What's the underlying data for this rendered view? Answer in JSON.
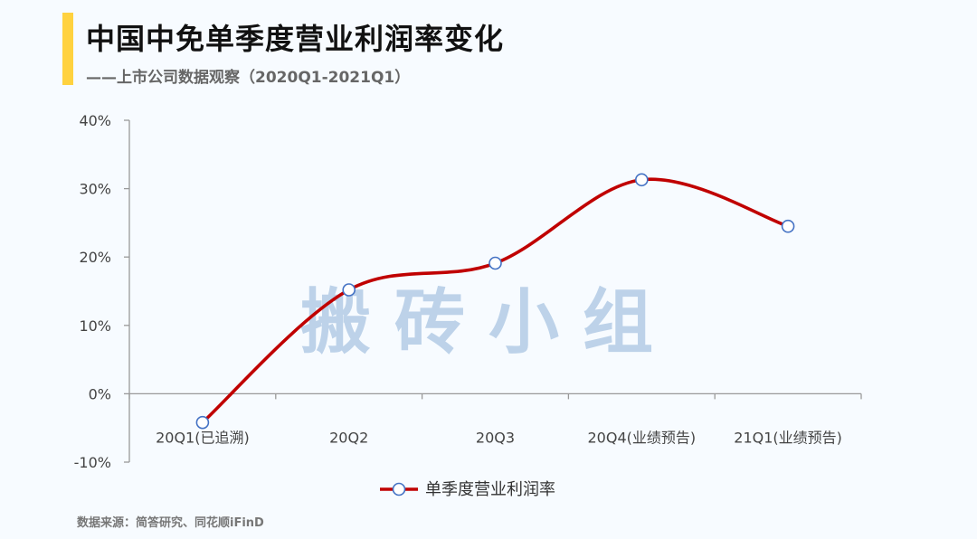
{
  "header": {
    "title": "中国中免单季度营业利润率变化",
    "subtitle": "——上市公司数据观察（2020Q1-2021Q1）"
  },
  "watermark": "搬砖小组",
  "source": "数据来源：简答研究、同花顺iFinD",
  "colors": {
    "accent": "#ffd23f",
    "line": "#c00000",
    "marker_fill": "#ffffff",
    "marker_stroke": "#4472c4",
    "axis": "#999999"
  },
  "chart_data": {
    "type": "line",
    "title": "中国中免单季度营业利润率变化",
    "subtitle": "——上市公司数据观察（2020Q1-2021Q1）",
    "categories": [
      "20Q1(已追溯)",
      "20Q2",
      "20Q3",
      "20Q4(业绩预告)",
      "21Q1(业绩预告)"
    ],
    "series": [
      {
        "name": "单季度营业利润率",
        "values": [
          -4.2,
          15.2,
          19.1,
          31.3,
          24.5
        ]
      }
    ],
    "ylim": [
      -10,
      40
    ],
    "yticks": [
      -10,
      0,
      10,
      20,
      30,
      40
    ],
    "ytick_labels": [
      "-10%",
      "0%",
      "10%",
      "20%",
      "30%",
      "40%"
    ],
    "smooth": true,
    "grid": false,
    "legend_position": "bottom-center"
  }
}
